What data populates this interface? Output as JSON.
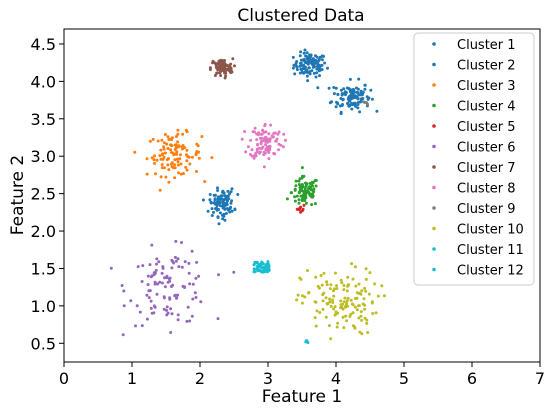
{
  "chart_data": {
    "type": "scatter",
    "title": "Clustered Data",
    "xlabel": "Feature 1",
    "ylabel": "Feature 2",
    "xlim": [
      0,
      7
    ],
    "ylim": [
      0.25,
      4.7
    ],
    "xticks": [
      "0",
      "1",
      "2",
      "3",
      "4",
      "5",
      "6",
      "7"
    ],
    "yticks": [
      "0.5",
      "1.0",
      "1.5",
      "2.0",
      "2.5",
      "3.0",
      "3.5",
      "4.0",
      "4.5"
    ],
    "grid": false,
    "legend_position": "top-right",
    "series": [
      {
        "name": "Cluster 1",
        "color": "#1f77b4",
        "center": [
          3.62,
          4.22
        ],
        "spread": [
          0.12,
          0.08
        ],
        "count": 110,
        "shape": "gaussian"
      },
      {
        "name": "Cluster 2",
        "color": "#1f77b4",
        "center": [
          4.22,
          3.8
        ],
        "spread": [
          0.14,
          0.1
        ],
        "count": 110,
        "shape": "gaussian"
      },
      {
        "name": "Cluster 3",
        "color": "#ff7f0e",
        "center": [
          1.62,
          3.02
        ],
        "spread": [
          0.2,
          0.14
        ],
        "count": 110,
        "shape": "gaussian"
      },
      {
        "name": "Cluster 4",
        "color": "#2ca02c",
        "center": [
          3.55,
          2.52
        ],
        "spread": [
          0.1,
          0.1
        ],
        "count": 90,
        "shape": "gaussian"
      },
      {
        "name": "Cluster 5",
        "color": "#d62728",
        "center": [
          3.47,
          2.3
        ],
        "spread": [
          0.04,
          0.03
        ],
        "count": 10,
        "shape": "gaussian"
      },
      {
        "name": "Cluster 6",
        "color": "#9467bd",
        "center": [
          1.55,
          1.25
        ],
        "spread": [
          0.3,
          0.25
        ],
        "count": 110,
        "shape": "gaussian"
      },
      {
        "name": "Cluster 7",
        "color": "#8c564b",
        "center": [
          2.32,
          4.18
        ],
        "spread": [
          0.08,
          0.06
        ],
        "count": 90,
        "shape": "gaussian"
      },
      {
        "name": "Cluster 8",
        "color": "#e377c2",
        "center": [
          2.97,
          3.2
        ],
        "spread": [
          0.12,
          0.12
        ],
        "count": 100,
        "shape": "gaussian"
      },
      {
        "name": "Cluster 9",
        "color": "#7f7f7f",
        "center": [
          4.42,
          3.7
        ],
        "spread": [
          0.03,
          0.02
        ],
        "count": 5,
        "shape": "gaussian"
      },
      {
        "name": "Cluster 10",
        "color": "#bcbd22",
        "center": [
          4.05,
          1.05
        ],
        "spread": [
          0.28,
          0.22
        ],
        "count": 140,
        "shape": "gaussian"
      },
      {
        "name": "Cluster 11",
        "color": "#17becf",
        "center": [
          2.9,
          1.52
        ],
        "spread": [
          0.1,
          0.06
        ],
        "count": 60,
        "shape": "box"
      },
      {
        "name": "Cluster 12",
        "color": "#17becf",
        "center": [
          3.58,
          0.54
        ],
        "spread": [
          0.03,
          0.03
        ],
        "count": 4,
        "shape": "gaussian"
      },
      {
        "name": "",
        "color": "#1f77b4",
        "center": [
          2.32,
          2.38
        ],
        "spread": [
          0.09,
          0.09
        ],
        "count": 100,
        "shape": "gaussian"
      }
    ]
  }
}
